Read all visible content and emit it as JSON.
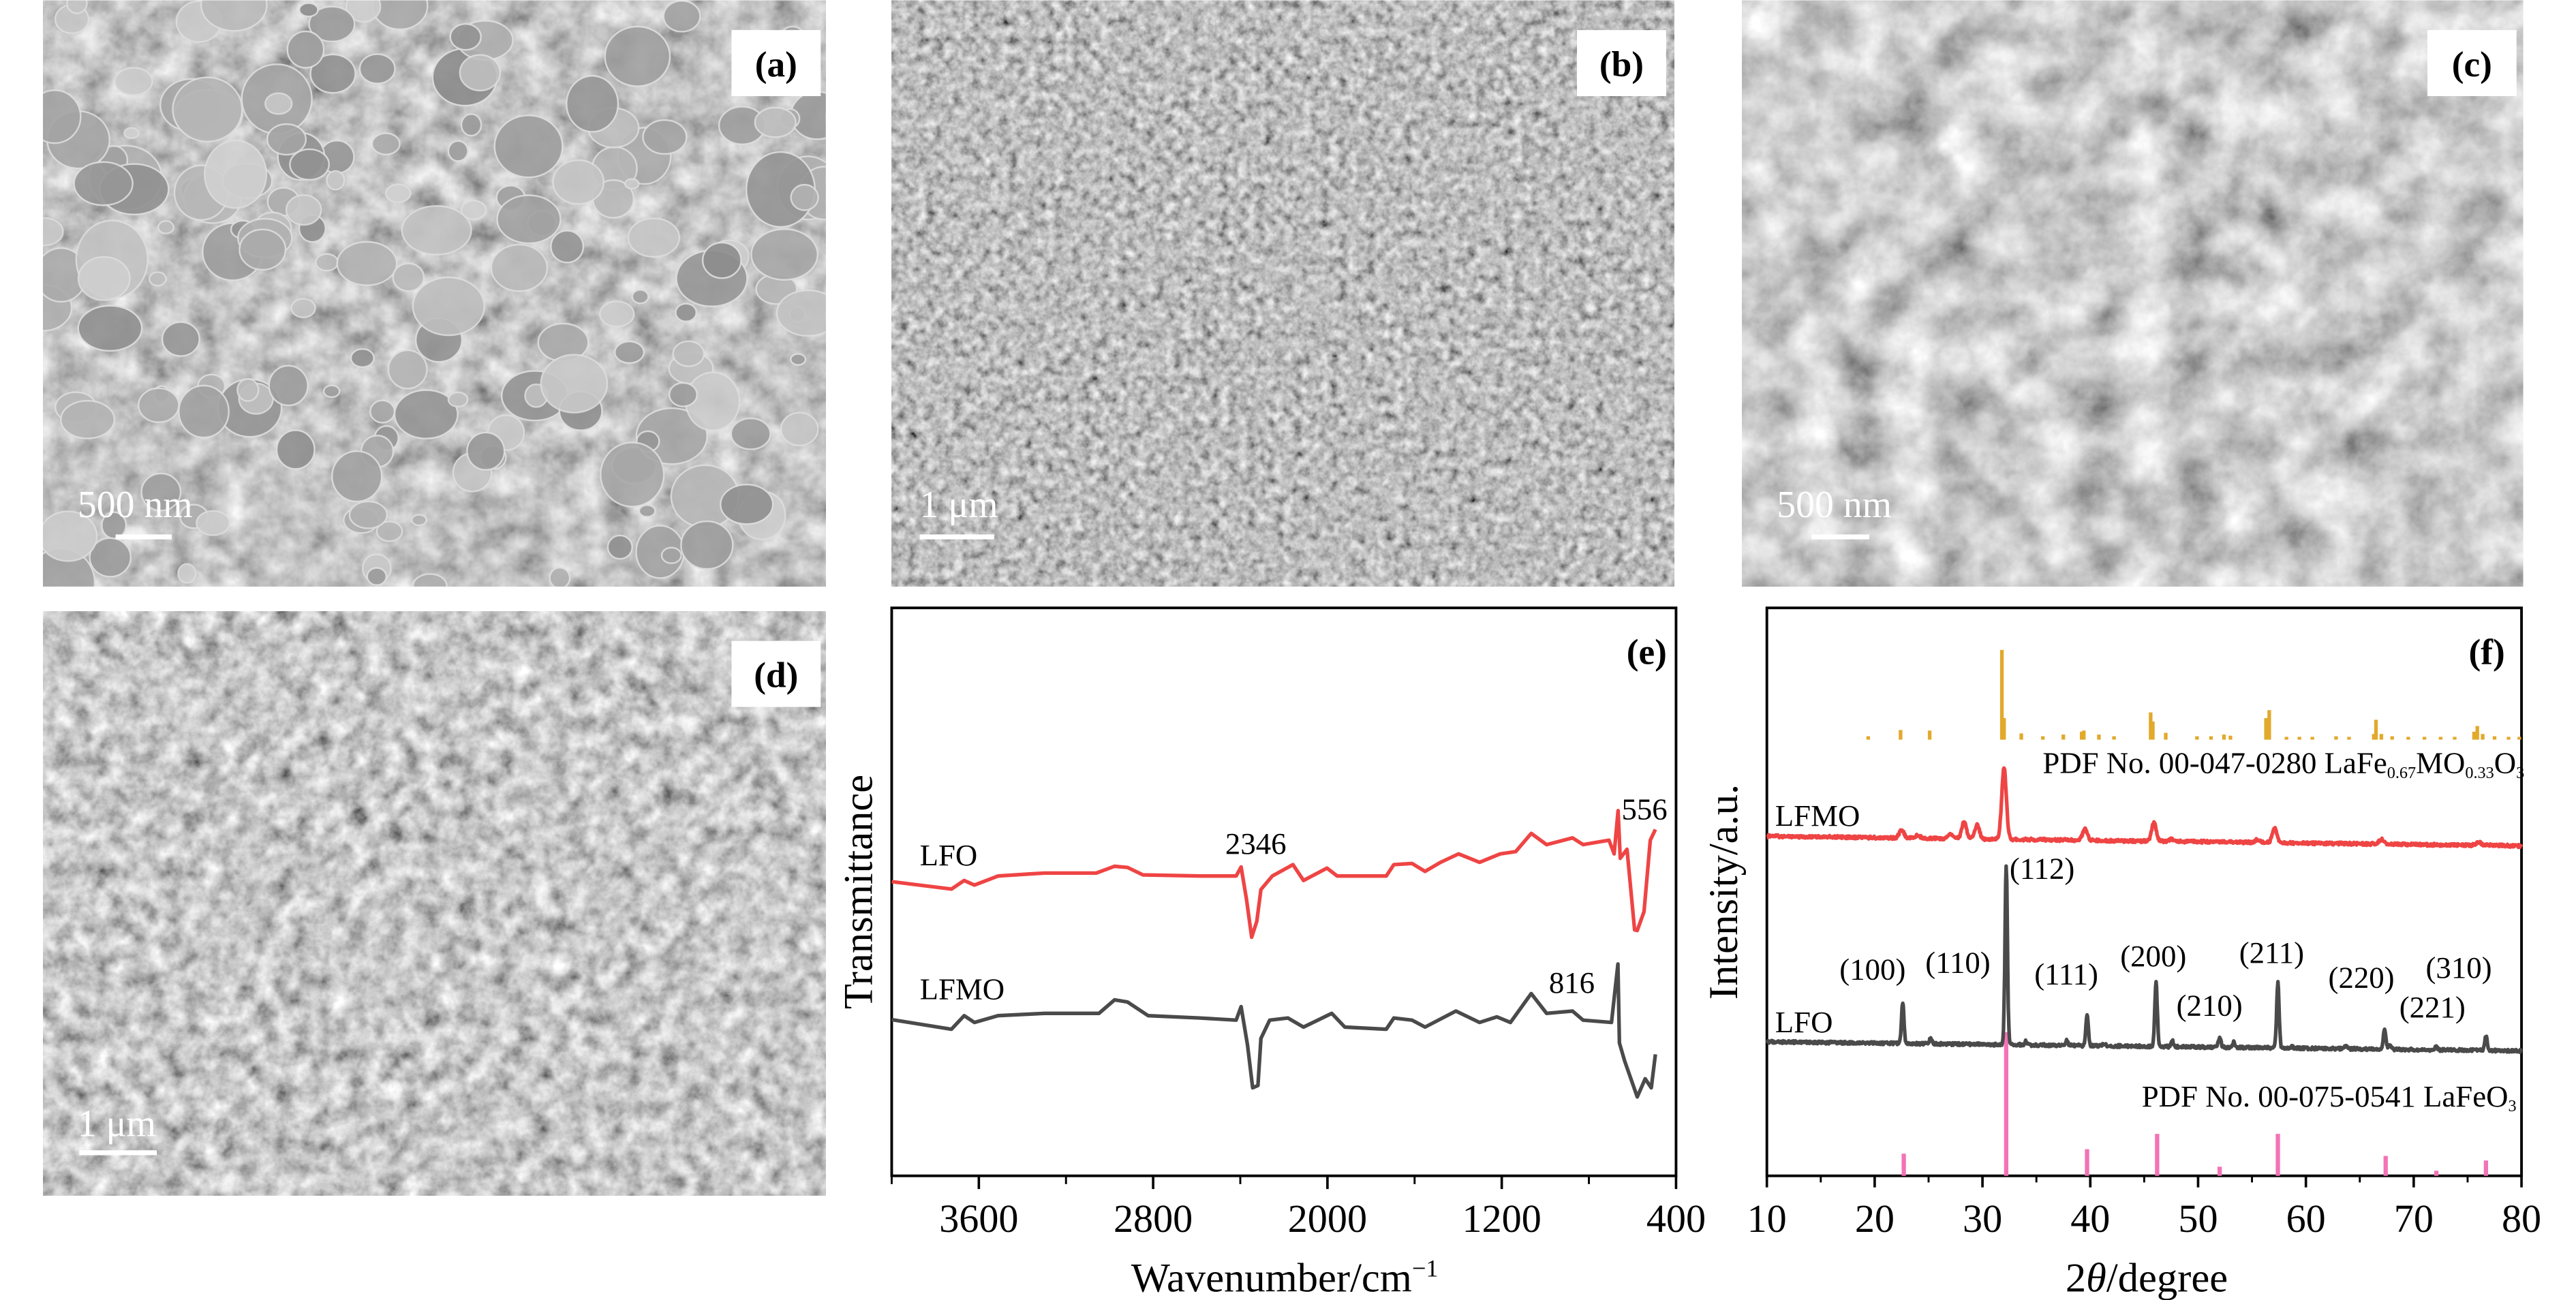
{
  "panels": {
    "a": {
      "label": "(a)",
      "scale_bar": "500 nm"
    },
    "b": {
      "label": "(b)",
      "scale_bar": "1 μm"
    },
    "c": {
      "label": "(c)",
      "scale_bar": "500 nm"
    },
    "d": {
      "label": "(d)",
      "scale_bar": "1 μm"
    }
  },
  "chart_data": [
    {
      "panel": "(e)",
      "type": "line",
      "title": "",
      "xlabel": "Wavenumber/cm",
      "xlabel_sup": "−1",
      "ylabel": "Transmittance",
      "xlim": [
        4000,
        400
      ],
      "ylim": [
        0,
        100
      ],
      "xticks": [
        3600,
        2800,
        2000,
        1200,
        400
      ],
      "xticks_minor": [
        4000,
        3200,
        2400,
        1600,
        800
      ],
      "annotations": {
        "p2346": "2346",
        "p556": "556",
        "p816": "816"
      },
      "colors": {
        "LFO": "#ef4444",
        "LFMO": "#4a4a4a"
      },
      "series": [
        {
          "name": "LFO",
          "x": [
            4000,
            3726,
            3667,
            3620,
            3512,
            3298,
            3061,
            2977,
            2918,
            2847,
            2585,
            2419,
            2396,
            2372,
            2348,
            2324,
            2305,
            2253,
            2158,
            2110,
            2002,
            1955,
            1730,
            1695,
            1612,
            1552,
            1481,
            1398,
            1302,
            1207,
            1136,
            1065,
            994,
            875,
            827,
            708,
            684,
            666,
            656,
            625,
            590,
            578,
            547,
            518,
            495
          ],
          "y": [
            51.8,
            50.5,
            52,
            51.2,
            52.8,
            53.3,
            53.3,
            54.5,
            54.3,
            53,
            52.8,
            52.8,
            54.4,
            48.8,
            42,
            44.8,
            50.4,
            52.8,
            54.8,
            52,
            54.2,
            52.8,
            52.8,
            54.8,
            55,
            53.6,
            55.2,
            56.7,
            55.2,
            56.7,
            57.1,
            60.3,
            58.3,
            59.5,
            58.3,
            59.1,
            56.7,
            64.3,
            55.9,
            57.5,
            43.3,
            43.2,
            46.5,
            59.1,
            61
          ]
        },
        {
          "name": "LFMO",
          "x": [
            4000,
            3726,
            3667,
            3620,
            3512,
            3298,
            3049,
            2977,
            2918,
            2823,
            2585,
            2419,
            2396,
            2367,
            2343,
            2319,
            2305,
            2265,
            2182,
            2110,
            1980,
            1920,
            1730,
            1695,
            1612,
            1552,
            1410,
            1302,
            1222,
            1160,
            1065,
            994,
            875,
            827,
            696,
            667,
            660,
            636,
            578,
            542,
            514,
            495
          ],
          "y": [
            27.5,
            25.8,
            28.2,
            27,
            28.2,
            28.6,
            28.6,
            31,
            30.6,
            28.2,
            27.8,
            27.4,
            29.8,
            23,
            15.5,
            15.9,
            24.2,
            27.4,
            27.8,
            26.2,
            28.6,
            26.2,
            25.8,
            27.8,
            27.4,
            26.2,
            29,
            27,
            28,
            27,
            32.1,
            28.6,
            29,
            27.4,
            27,
            37.3,
            23.4,
            20.2,
            13.9,
            17.1,
            15.5,
            21.4
          ]
        }
      ]
    },
    {
      "panel": "(f)",
      "type": "line",
      "title": "",
      "xlabel_pre": "2",
      "xlabel_theta": "θ",
      "xlabel_post": "/degree",
      "ylabel": "Intensity/a.u.",
      "xlim": [
        10,
        80
      ],
      "ylim": [
        0,
        100
      ],
      "xticks": [
        10,
        20,
        30,
        40,
        50,
        60,
        70,
        80
      ],
      "colors": {
        "LFO": "#4a4a4a",
        "LFMO": "#ef4444",
        "ref_LFMO": "#e2a92b",
        "ref_LaFeO3": "#f472b6"
      },
      "series": [
        {
          "name": "LFMO",
          "baseline": [
            59.8,
            58.1
          ],
          "width": 0.3,
          "peaks": [
            [
              22.5,
              1.5
            ],
            [
              24,
              0.5
            ],
            [
              27,
              0.8
            ],
            [
              28.3,
              3
            ],
            [
              29.5,
              2.5
            ],
            [
              32.0,
              12.5
            ],
            [
              39.5,
              2
            ],
            [
              45.9,
              3.3
            ],
            [
              47.5,
              0.4
            ],
            [
              55.5,
              0.5
            ],
            [
              57.1,
              2.5
            ],
            [
              67,
              0.8
            ],
            [
              76,
              0.6
            ]
          ]
        },
        {
          "name": "LFO",
          "baseline": [
            23.6,
            22.0
          ],
          "width": 0.16,
          "peaks": [
            [
              22.6,
              7.3
            ],
            [
              25.2,
              1.1
            ],
            [
              32.2,
              31.5
            ],
            [
              34,
              0.6
            ],
            [
              37.8,
              0.8
            ],
            [
              39.7,
              5.5
            ],
            [
              41.3,
              0.4
            ],
            [
              46.1,
              11.5
            ],
            [
              47.6,
              1.1
            ],
            [
              52.0,
              1.8
            ],
            [
              53.3,
              0.9
            ],
            [
              57.4,
              11.5
            ],
            [
              58.7,
              0.3
            ],
            [
              63.7,
              0.4
            ],
            [
              67.3,
              3.7
            ],
            [
              67.8,
              0.8
            ],
            [
              72.1,
              0.6
            ],
            [
              76.7,
              2.6
            ]
          ]
        }
      ],
      "reference_patterns": [
        {
          "name": "PDF No. 00-047-0280 LaFe0.67MO0.33O3",
          "baseline": 76.8,
          "bars": [
            [
              19.4,
              0.6
            ],
            [
              22.4,
              1.7
            ],
            [
              25.1,
              1.6
            ],
            [
              31.8,
              15.8
            ],
            [
              32.0,
              3.8
            ],
            [
              33.6,
              1.1
            ],
            [
              35.6,
              0.6
            ],
            [
              37.5,
              0.9
            ],
            [
              39.2,
              1.4
            ],
            [
              39.4,
              1.6
            ],
            [
              40.8,
              0.9
            ],
            [
              42.2,
              0.6
            ],
            [
              45.6,
              4.8
            ],
            [
              45.8,
              3.2
            ],
            [
              47.0,
              1.2
            ],
            [
              49.9,
              0.6
            ],
            [
              51.2,
              0.6
            ],
            [
              52.4,
              0.9
            ],
            [
              53.0,
              0.7
            ],
            [
              56.3,
              3.8
            ],
            [
              56.6,
              5.2
            ],
            [
              58.2,
              0.5
            ],
            [
              59.4,
              0.5
            ],
            [
              60.6,
              0.5
            ],
            [
              62.8,
              0.6
            ],
            [
              64.0,
              0.5
            ],
            [
              66.3,
              1.0
            ],
            [
              66.5,
              3.5
            ],
            [
              67.0,
              1.0
            ],
            [
              68.0,
              0.6
            ],
            [
              69.5,
              0.5
            ],
            [
              71.0,
              0.5
            ],
            [
              72.5,
              0.5
            ],
            [
              73.8,
              0.5
            ],
            [
              75.6,
              1.4
            ],
            [
              75.9,
              2.4
            ],
            [
              76.4,
              1.0
            ],
            [
              77.5,
              0.6
            ],
            [
              78.8,
              0.5
            ],
            [
              79.8,
              0.5
            ]
          ]
        },
        {
          "name": "PDF No. 00-075-0541 LaFeO3",
          "baseline": 0,
          "bars": [
            [
              22.7,
              3.9
            ],
            [
              32.2,
              25.3
            ],
            [
              39.7,
              4.7
            ],
            [
              46.2,
              7.4
            ],
            [
              52.0,
              1.6
            ],
            [
              57.4,
              7.4
            ],
            [
              67.4,
              3.5
            ],
            [
              72.1,
              0.9
            ],
            [
              76.7,
              2.7
            ]
          ]
        }
      ],
      "labels": {
        "LFMO": "LFMO",
        "LFO": "LFO",
        "ref1_pre": "PDF No. 00-047-0280 LaFe",
        "ref1_sub1": "0.67",
        "ref1_mid": "MO",
        "ref1_sub2": "0.33",
        "ref1_post": "O",
        "ref1_sub3": "3",
        "ref2_pre": "PDF No. 00-075-0541 LaFeO",
        "ref2_sub": "3"
      },
      "miller_indices": [
        "(100)",
        "(110)",
        "(112)",
        "(111)",
        "(200)",
        "(210)",
        "(211)",
        "(220)",
        "(221)",
        "(310)"
      ]
    }
  ],
  "panel_labels": {
    "e": "(e)",
    "f": "(f)"
  },
  "series_labels": {
    "LFO": "LFO",
    "LFMO": "LFMO"
  }
}
